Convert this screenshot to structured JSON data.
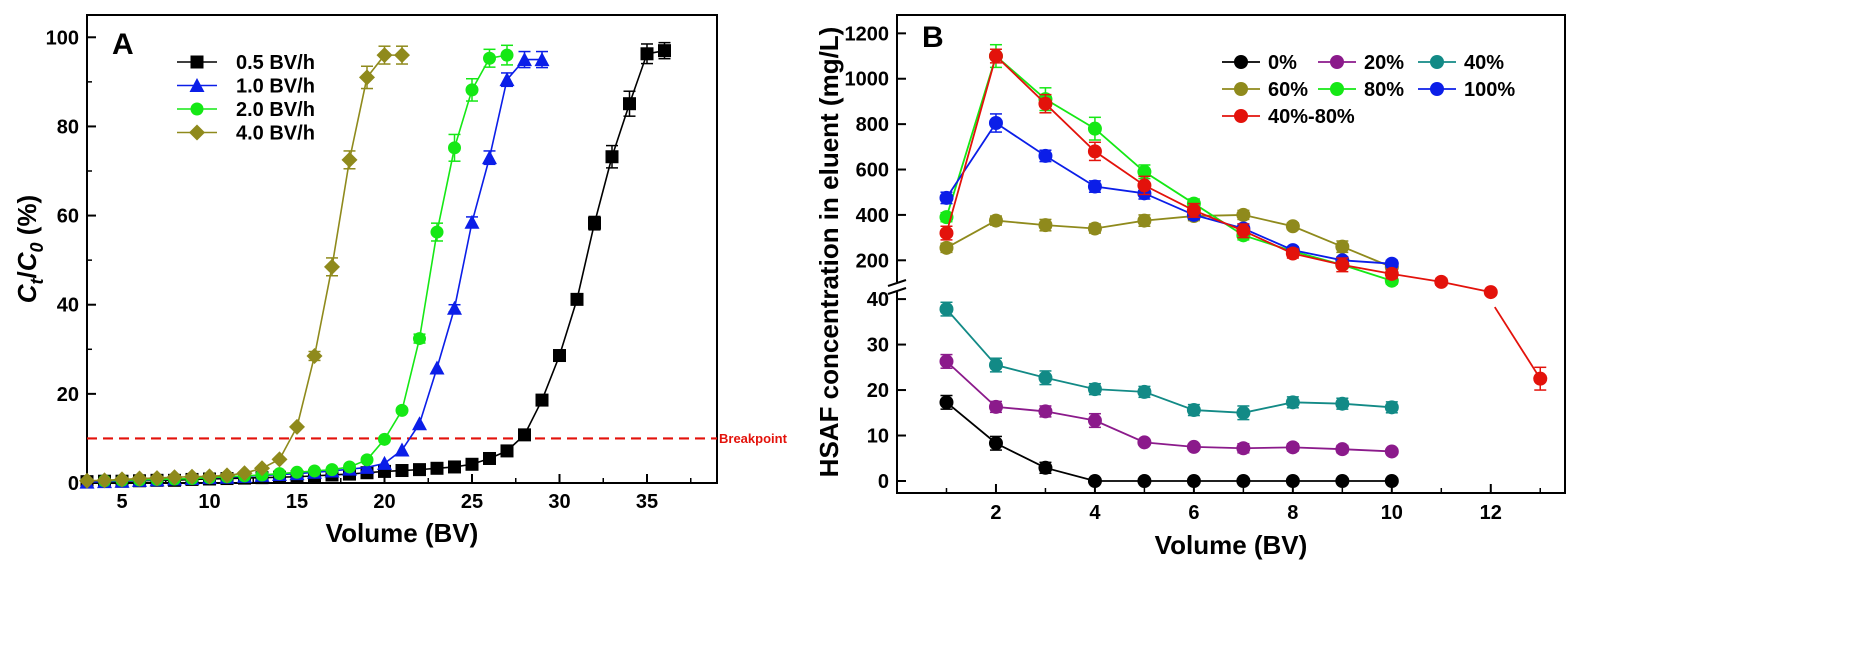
{
  "chart_data": [
    {
      "type": "line",
      "panel_label": "A",
      "xlabel": "Volume (BV)",
      "ylabel_parts": {
        "base": "C",
        "sub1": "t",
        "mid": "/",
        "base2": "C",
        "sub2": "0",
        "suffix": " (%)"
      },
      "xlim": [
        3,
        39
      ],
      "ylim": [
        0,
        105
      ],
      "xticks": [
        5,
        10,
        15,
        20,
        25,
        30,
        35
      ],
      "yticks": [
        0,
        20,
        40,
        60,
        80,
        100
      ],
      "breakpoint": {
        "value": 10,
        "label": "Breakpoint",
        "color": "#e3120b"
      },
      "series": [
        {
          "name": "0.5 BV/h",
          "color": "#000000",
          "marker": "square",
          "x": [
            3,
            4,
            5,
            6,
            7,
            8,
            9,
            10,
            11,
            12,
            13,
            14,
            15,
            16,
            17,
            18,
            19,
            20,
            21,
            22,
            23,
            24,
            25,
            26,
            27,
            28,
            29,
            30,
            31,
            32,
            33,
            34,
            35,
            36
          ],
          "y": [
            0.3,
            0.4,
            0.4,
            0.5,
            0.6,
            0.6,
            0.8,
            0.9,
            1.0,
            1.1,
            1.2,
            1.3,
            1.4,
            1.6,
            1.8,
            2.0,
            2.3,
            2.6,
            2.8,
            3.0,
            3.3,
            3.6,
            4.2,
            5.5,
            7.2,
            10.8,
            18.6,
            28.6,
            41.2,
            58.3,
            73.2,
            85.1,
            96.3,
            97.0
          ],
          "err": [
            0,
            0,
            0,
            0,
            0,
            0,
            0,
            0,
            0,
            0,
            0,
            0,
            0,
            0,
            0,
            0,
            0,
            0,
            0,
            0,
            0,
            0,
            0,
            0,
            0,
            0,
            0,
            0,
            1.2,
            1.5,
            2.5,
            2.8,
            2.2,
            1.8
          ]
        },
        {
          "name": "1.0 BV/h",
          "color": "#0b1ee8",
          "marker": "triangle",
          "x": [
            3,
            4,
            5,
            6,
            7,
            8,
            9,
            10,
            11,
            12,
            13,
            14,
            15,
            16,
            17,
            18,
            19,
            20,
            21,
            22,
            23,
            24,
            25,
            26,
            27,
            28,
            29
          ],
          "y": [
            0.2,
            0.3,
            0.4,
            0.6,
            0.7,
            0.9,
            1.0,
            1.2,
            1.3,
            1.5,
            1.7,
            1.9,
            2.1,
            2.4,
            2.7,
            3.1,
            3.5,
            4.4,
            7.4,
            13.3,
            25.8,
            39.2,
            58.5,
            73.0,
            90.5,
            95.0,
            95.0
          ],
          "err": [
            0,
            0,
            0,
            0,
            0,
            0,
            0,
            0,
            0,
            0,
            0,
            0,
            0,
            0,
            0,
            0,
            0,
            0,
            0,
            0,
            0,
            0.8,
            1.2,
            1.5,
            1.5,
            1.8,
            1.8
          ]
        },
        {
          "name": "2.0 BV/h",
          "color": "#15e815",
          "marker": "circle",
          "x": [
            4,
            5,
            6,
            7,
            8,
            9,
            10,
            11,
            12,
            13,
            14,
            15,
            16,
            17,
            18,
            19,
            20,
            21,
            22,
            23,
            24,
            25,
            26,
            27
          ],
          "y": [
            0.5,
            0.6,
            0.7,
            0.8,
            0.9,
            1.0,
            1.2,
            1.4,
            1.6,
            1.8,
            2.1,
            2.4,
            2.7,
            3.0,
            3.6,
            5.2,
            9.8,
            16.3,
            32.4,
            56.3,
            75.2,
            88.2,
            95.3,
            96.0
          ],
          "err": [
            0,
            0,
            0,
            0,
            0,
            0,
            0,
            0,
            0,
            0,
            0,
            0,
            0,
            0,
            0,
            0,
            0,
            0,
            1.0,
            2.0,
            3.0,
            2.5,
            2.0,
            2.2
          ]
        },
        {
          "name": "4.0 BV/h",
          "color": "#8f8a1c",
          "marker": "diamond",
          "x": [
            3,
            4,
            5,
            6,
            7,
            8,
            9,
            10,
            11,
            12,
            13,
            14,
            15,
            16,
            17,
            18,
            19,
            20,
            21
          ],
          "y": [
            0.5,
            0.6,
            0.8,
            1.0,
            1.1,
            1.3,
            1.4,
            1.5,
            1.7,
            2.2,
            3.3,
            5.3,
            12.6,
            28.5,
            48.5,
            72.5,
            91.0,
            96.0,
            96.0
          ],
          "err": [
            0,
            0,
            0,
            0,
            0,
            0,
            0,
            0,
            0,
            0,
            0,
            0,
            0,
            1.0,
            2.0,
            2.0,
            2.5,
            2.0,
            2.0
          ]
        }
      ]
    },
    {
      "type": "line",
      "panel_label": "B",
      "xlabel": "Volume (BV)",
      "ylabel": "HSAF concentration in eluent (mg/L)",
      "broken_axis": true,
      "xlim": [
        0,
        13.5
      ],
      "xticks": [
        2,
        4,
        6,
        8,
        10,
        12
      ],
      "lower_ylim": [
        0,
        42
      ],
      "lower_yticks": [
        0,
        10,
        20,
        30,
        40
      ],
      "upper_ylim": [
        100,
        1250
      ],
      "upper_yticks": [
        200,
        400,
        600,
        800,
        1000,
        1200
      ],
      "series": [
        {
          "name": "0%",
          "color": "#000000",
          "x": [
            1,
            2,
            3,
            4,
            5,
            6,
            7,
            8,
            9,
            10
          ],
          "y": [
            17.3,
            8.3,
            2.9,
            0,
            0,
            0,
            0,
            0,
            0,
            0
          ],
          "err": [
            1.5,
            1.5,
            1.2,
            0,
            0,
            0,
            0,
            0,
            0,
            0
          ]
        },
        {
          "name": "20%",
          "color": "#8b1a8b",
          "x": [
            1,
            2,
            3,
            4,
            5,
            6,
            7,
            8,
            9,
            10
          ],
          "y": [
            26.3,
            16.3,
            15.3,
            13.3,
            8.5,
            7.5,
            7.2,
            7.4,
            7.0,
            6.5
          ],
          "err": [
            1.5,
            1.2,
            1.2,
            1.5,
            0.5,
            0.5,
            1.0,
            0.8,
            0.8,
            0.6
          ]
        },
        {
          "name": "40%",
          "color": "#128a86",
          "x": [
            1,
            2,
            3,
            4,
            5,
            6,
            7,
            8,
            9,
            10
          ],
          "y": [
            37.8,
            25.5,
            22.7,
            20.2,
            19.6,
            15.6,
            15.0,
            17.3,
            17.0,
            16.2
          ],
          "err": [
            1.5,
            1.5,
            1.5,
            1.2,
            1.2,
            1.2,
            1.5,
            1.2,
            1.2,
            1.2
          ]
        },
        {
          "name": "60%",
          "color": "#8f8a1c",
          "x": [
            1,
            2,
            3,
            4,
            5,
            6,
            7,
            8,
            9,
            10
          ],
          "y": [
            255,
            375,
            355,
            340,
            375,
            395,
            400,
            350,
            260,
            170
          ],
          "err": [
            20,
            20,
            25,
            20,
            25,
            20,
            20,
            15,
            25,
            20
          ]
        },
        {
          "name": "80%",
          "color": "#15e815",
          "x": [
            1,
            2,
            3,
            4,
            5,
            6,
            7,
            8,
            9,
            10
          ],
          "y": [
            390,
            1100,
            910,
            780,
            590,
            450,
            310,
            240,
            180,
            110
          ],
          "err": [
            20,
            50,
            50,
            50,
            30,
            20,
            20,
            15,
            15,
            15
          ]
        },
        {
          "name": "100%",
          "color": "#0b1ee8",
          "x": [
            1,
            2,
            3,
            4,
            5,
            6,
            7,
            8,
            9,
            10
          ],
          "y": [
            475,
            805,
            660,
            525,
            495,
            400,
            340,
            245,
            200,
            185
          ],
          "err": [
            25,
            40,
            25,
            25,
            25,
            20,
            20,
            15,
            15,
            15
          ]
        },
        {
          "name": "40%-80%",
          "color": "#e3120b",
          "x": [
            1,
            2,
            3,
            4,
            5,
            6,
            7,
            8,
            9,
            10,
            11,
            12,
            13
          ],
          "y": [
            320,
            1100,
            890,
            680,
            530,
            420,
            330,
            230,
            180,
            140,
            105,
            60,
            22.5
          ],
          "err": [
            30,
            30,
            40,
            40,
            40,
            30,
            30,
            20,
            30,
            20,
            15,
            10,
            2.5
          ],
          "y_axis_last": "lower"
        }
      ]
    }
  ]
}
